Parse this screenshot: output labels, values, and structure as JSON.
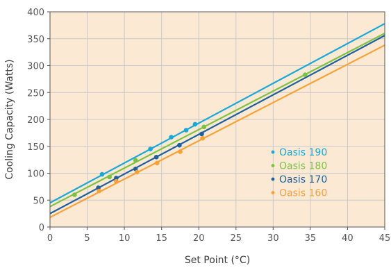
{
  "chart_data": {
    "type": "scatter",
    "xlabel": "Set Point (°C)",
    "ylabel": "Cooling Capacity (Watts)",
    "xlim": [
      0,
      45
    ],
    "ylim": [
      0,
      400
    ],
    "x_ticks": [
      "0",
      "5",
      "10",
      "15",
      "20",
      "25",
      "30",
      "35",
      "40",
      "45"
    ],
    "y_ticks": [
      "0",
      "50",
      "100",
      "150",
      "200",
      "250",
      "300",
      "350",
      "400"
    ],
    "grid": true,
    "plot_background": "#fbe9d4",
    "grid_color": "#c9c9c9",
    "legend_position": "right-center",
    "legend": [
      "Oasis 190",
      "Oasis 180",
      "Oasis 170",
      "Oasis 160"
    ],
    "series": [
      {
        "name": "Oasis 190",
        "color": "#1aa7d8",
        "line": {
          "x": [
            0,
            45
          ],
          "y": [
            45,
            378
          ]
        },
        "points": [
          [
            7.0,
            98
          ],
          [
            13.5,
            145
          ],
          [
            16.3,
            167
          ],
          [
            18.3,
            180
          ],
          [
            19.5,
            191
          ]
        ]
      },
      {
        "name": "Oasis 180",
        "color": "#7dc143",
        "line": {
          "x": [
            0,
            45
          ],
          "y": [
            38,
            360
          ]
        },
        "points": [
          [
            3.3,
            60
          ],
          [
            8.0,
            93
          ],
          [
            11.5,
            124
          ],
          [
            20.7,
            186
          ],
          [
            34.3,
            283
          ]
        ]
      },
      {
        "name": "Oasis 170",
        "color": "#1e5f9e",
        "line": {
          "x": [
            0,
            45
          ],
          "y": [
            25,
            356
          ]
        },
        "points": [
          [
            6.5,
            73
          ],
          [
            8.9,
            91
          ],
          [
            11.5,
            108
          ],
          [
            14.3,
            130
          ],
          [
            17.4,
            152
          ],
          [
            20.4,
            173
          ]
        ]
      },
      {
        "name": "Oasis 160",
        "color": "#f7a239",
        "line": {
          "x": [
            0,
            45
          ],
          "y": [
            18,
            338
          ]
        },
        "points": [
          [
            6.6,
            67
          ],
          [
            8.9,
            85
          ],
          [
            11.7,
            102
          ],
          [
            14.4,
            119
          ],
          [
            17.5,
            140
          ],
          [
            20.5,
            165
          ]
        ]
      }
    ]
  }
}
